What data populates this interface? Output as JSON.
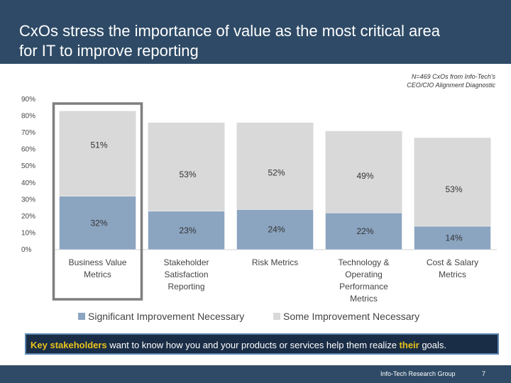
{
  "slide": {
    "title_lines": [
      "CxOs stress the importance of value as the most critical area",
      "for IT to improve reporting"
    ],
    "note_lines": [
      "N=469 CxOs from Info-Tech's",
      "CEO/CIO Alignment Diagnostic"
    ],
    "callout": {
      "highlight_1": "Key stakeholders",
      "middle": " want to know how you and your products or services help them realize ",
      "highlight_2": "their",
      "end": " goals."
    },
    "footer": {
      "org": "Info-Tech Research Group",
      "page": "7"
    }
  },
  "colors": {
    "header_bg": "#2e4a66",
    "significant": "#8ba4c0",
    "some": "#d9d9d9",
    "highlight_box": "#7f7f7f",
    "callout_bg": "#1a2d46",
    "callout_accent": "#e8c21c"
  },
  "chart_data": {
    "type": "bar",
    "stacked": true,
    "categories": [
      [
        "Business Value",
        "Metrics"
      ],
      [
        "Stakeholder",
        "Satisfaction",
        "Reporting"
      ],
      [
        "Risk Metrics"
      ],
      [
        "Technology &",
        "Operating",
        "Performance",
        "Metrics"
      ],
      [
        "Cost & Salary",
        "Metrics"
      ]
    ],
    "series": [
      {
        "name": "Significant Improvement Necessary",
        "values": [
          32,
          23,
          24,
          22,
          14
        ],
        "labels": [
          "32%",
          "23%",
          "24%",
          "22%",
          "14%"
        ]
      },
      {
        "name": "Some Improvement Necessary",
        "values": [
          51,
          53,
          52,
          49,
          53
        ],
        "labels": [
          "51%",
          "53%",
          "52%",
          "49%",
          "53%"
        ]
      }
    ],
    "yticks": [
      "0%",
      "10%",
      "20%",
      "30%",
      "40%",
      "50%",
      "60%",
      "70%",
      "80%",
      "90%"
    ],
    "ylim": [
      0,
      90
    ],
    "legend_position": "bottom",
    "highlighted_category": 0
  }
}
